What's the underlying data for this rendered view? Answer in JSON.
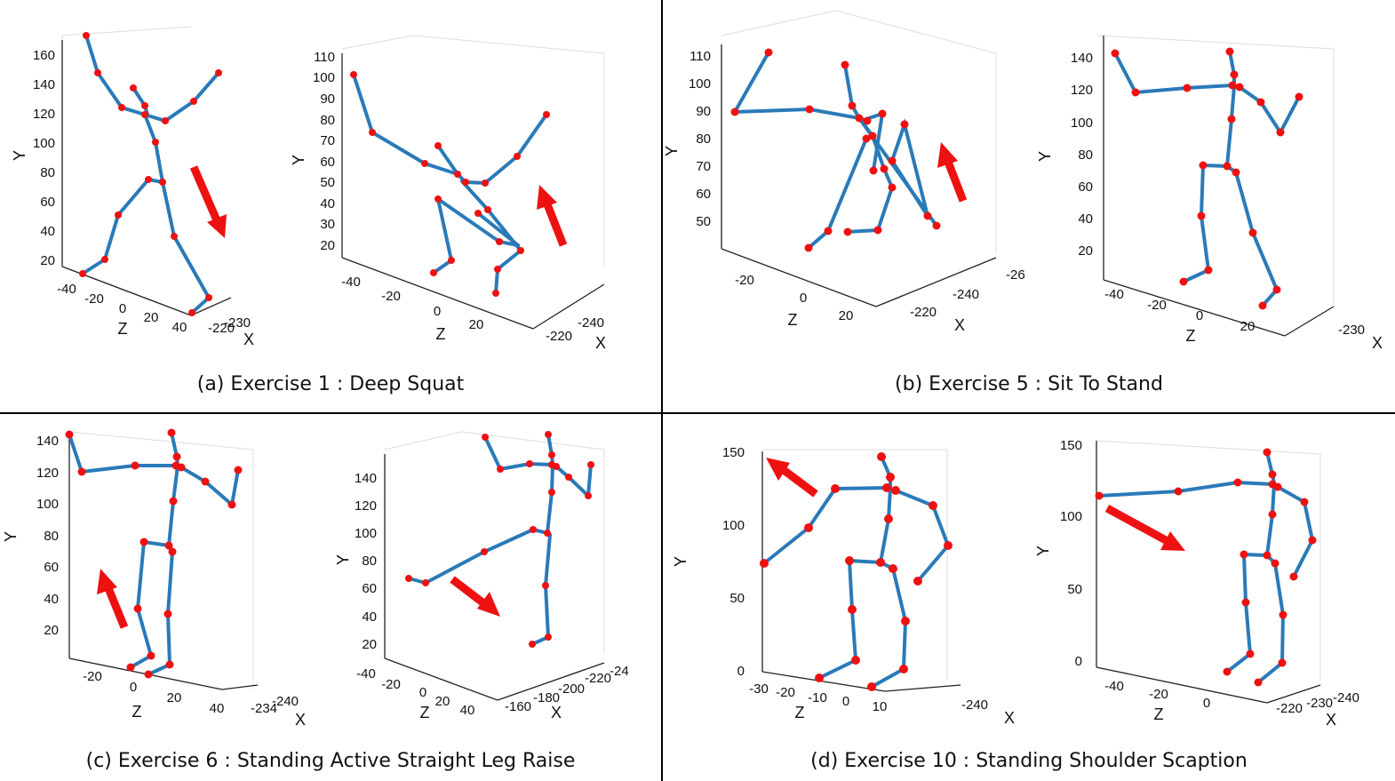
{
  "panels": [
    {
      "id": "a",
      "caption": "(a) Exercise 1 : Deep Squat",
      "plots": [
        {
          "y_ticks": [
            "160",
            "140",
            "120",
            "100",
            "80",
            "60",
            "40",
            "20"
          ],
          "z_ticks": [
            "-40",
            "-20",
            "0",
            "20",
            "40"
          ],
          "x_ticks": [
            "-230",
            "-220"
          ],
          "axis_labels": {
            "y": "Y",
            "z": "Z",
            "x": "X"
          }
        },
        {
          "y_ticks": [
            "110",
            "100",
            "90",
            "80",
            "70",
            "60",
            "50",
            "40",
            "30",
            "20"
          ],
          "z_ticks": [
            "-40",
            "-20",
            "0",
            "20"
          ],
          "x_ticks": [
            "-240",
            "-220"
          ],
          "axis_labels": {
            "y": "Y",
            "z": "Z",
            "x": "X"
          }
        }
      ]
    },
    {
      "id": "b",
      "caption": "(b) Exercise 5 : Sit To Stand",
      "plots": [
        {
          "y_ticks": [
            "110",
            "100",
            "90",
            "80",
            "70",
            "60",
            "50"
          ],
          "z_ticks": [
            "-20",
            "0",
            "20"
          ],
          "x_ticks": [
            "-26",
            "-240",
            "-220"
          ],
          "axis_labels": {
            "y": "Y",
            "z": "Z",
            "x": "X"
          }
        },
        {
          "y_ticks": [
            "140",
            "120",
            "100",
            "80",
            "60",
            "40",
            "20"
          ],
          "z_ticks": [
            "-40",
            "-20",
            "0",
            "20"
          ],
          "x_ticks": [
            "-230"
          ],
          "axis_labels": {
            "y": "Y",
            "z": "Z",
            "x": "X"
          }
        }
      ]
    },
    {
      "id": "c",
      "caption": "(c) Exercise 6 : Standing Active Straight Leg Raise",
      "plots": [
        {
          "y_ticks": [
            "140",
            "120",
            "100",
            "80",
            "60",
            "40",
            "20"
          ],
          "z_ticks": [
            "-20",
            "0",
            "20",
            "40"
          ],
          "x_ticks": [
            "-240",
            "-234"
          ],
          "axis_labels": {
            "y": "Y",
            "z": "Z",
            "x": "X"
          }
        },
        {
          "y_ticks": [
            "140",
            "120",
            "100",
            "80",
            "60",
            "40",
            "20"
          ],
          "z_ticks": [
            "-40",
            "-20",
            "0",
            "20",
            "40"
          ],
          "x_ticks": [
            "-24",
            "-220",
            "-200",
            "-180",
            "-160"
          ],
          "axis_labels": {
            "y": "Y",
            "z": "Z",
            "x": "X"
          }
        }
      ]
    },
    {
      "id": "d",
      "caption": "(d) Exercise 10 : Standing Shoulder Scaption",
      "plots": [
        {
          "y_ticks": [
            "150",
            "100",
            "50",
            "0"
          ],
          "z_ticks": [
            "-30",
            "-20",
            "-10",
            "0",
            "10"
          ],
          "x_ticks": [
            "-240"
          ],
          "axis_labels": {
            "y": "Y",
            "z": "Z",
            "x": "X"
          }
        },
        {
          "y_ticks": [
            "150",
            "100",
            "50",
            "0"
          ],
          "z_ticks": [
            "-40",
            "-20",
            "0"
          ],
          "x_ticks": [
            "-240",
            "-230",
            "-220"
          ],
          "axis_labels": {
            "y": "Y",
            "z": "Z",
            "x": "X"
          }
        }
      ]
    }
  ],
  "colors": {
    "bone": "#2a7ab8",
    "joint": "#ee1111",
    "arrow": "#ee1111",
    "divider": "#000000"
  }
}
